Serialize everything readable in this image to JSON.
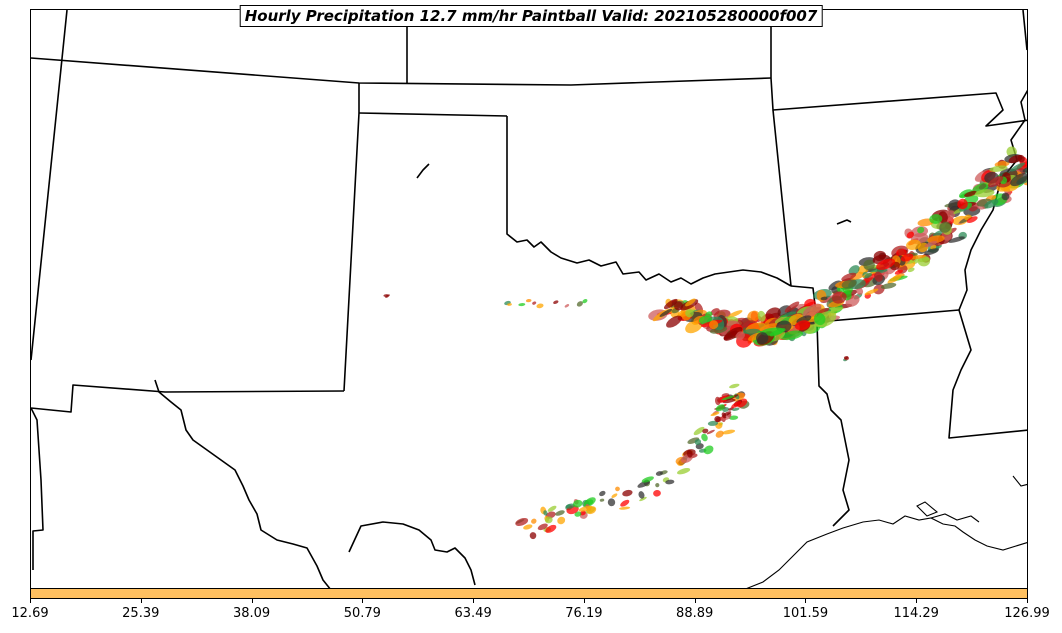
{
  "title": "Hourly Precipitation 12.7 mm/hr Paintball Valid: 202105280000f007",
  "colorbar": {
    "color": "#ffc060",
    "tick_labels": [
      "12.69",
      "25.39",
      "38.09",
      "50.79",
      "63.49",
      "76.19",
      "88.89",
      "101.59",
      "114.29",
      "126.99"
    ]
  },
  "member_colors": [
    "#ff0000",
    "#ff8c00",
    "#ffa500",
    "#22cc22",
    "#2e8b57",
    "#8b0000",
    "#b22222",
    "#9acd32",
    "#556b2f",
    "#333333",
    "#cd5c5c"
  ]
}
